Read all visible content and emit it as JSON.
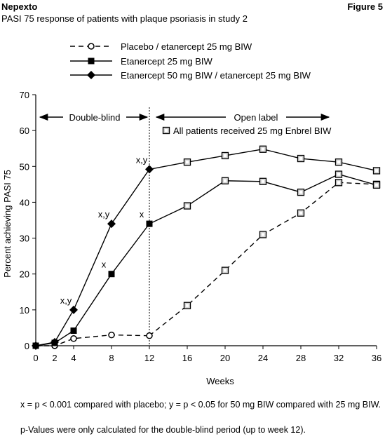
{
  "header": {
    "brand": "Nepexto",
    "figure_label": "Figure 5",
    "title": "PASI 75 response of patients with plaque psoriasis in study 2"
  },
  "chart_data": {
    "type": "line",
    "title": "PASI 75 response of patients with plaque psoriasis in study 2",
    "xlabel": "Weeks",
    "ylabel": "Percent achieving PASI 75",
    "xlim": [
      0,
      36
    ],
    "ylim": [
      0,
      70
    ],
    "x_ticks": [
      0,
      2,
      4,
      8,
      12,
      16,
      20,
      24,
      28,
      32,
      36
    ],
    "y_ticks": [
      0,
      10,
      20,
      30,
      40,
      50,
      60,
      70
    ],
    "grid": false,
    "legend_position": "top",
    "series": [
      {
        "name": "Placebo / etanercept 25 mg BIW",
        "style": "dashed",
        "marker": "open-circle",
        "x": [
          0,
          2,
          4,
          8,
          12
        ],
        "values": [
          0,
          0,
          2,
          3,
          2.8
        ],
        "color": "#000000"
      },
      {
        "name": "Etanercept 25 mg BIW",
        "style": "solid",
        "marker": "filled-square",
        "x": [
          0,
          2,
          4,
          8,
          12
        ],
        "values": [
          0,
          0.8,
          4.2,
          20,
          34
        ],
        "color": "#000000"
      },
      {
        "name": "Etanercept 50 mg BIW / etanercept 25 mg BIW",
        "style": "solid",
        "marker": "filled-diamond",
        "x": [
          0,
          2,
          4,
          8,
          12
        ],
        "values": [
          0,
          1,
          10,
          34,
          49.2
        ],
        "color": "#000000"
      },
      {
        "name": "All patients received 25 mg Enbrel BIW",
        "open_label": true,
        "from_series": 0,
        "style": "dashed",
        "marker": "open-square",
        "x": [
          12,
          16,
          20,
          24,
          28,
          32,
          36
        ],
        "values": [
          2.8,
          11.2,
          21,
          31,
          37,
          45.5,
          45
        ],
        "color": "#000000"
      },
      {
        "open_label": true,
        "from_series": 1,
        "style": "solid",
        "marker": "open-square",
        "x": [
          12,
          16,
          20,
          24,
          28,
          32,
          36
        ],
        "values": [
          34,
          39,
          46,
          45.8,
          42.8,
          47.8,
          44.8
        ],
        "color": "#000000"
      },
      {
        "open_label": true,
        "from_series": 2,
        "style": "solid",
        "marker": "open-square",
        "x": [
          12,
          16,
          20,
          24,
          28,
          32,
          36
        ],
        "values": [
          49.2,
          51.2,
          53,
          54.8,
          52.2,
          51.2,
          48.8
        ],
        "color": "#000000"
      }
    ],
    "annotations": [
      {
        "text": "x,y",
        "x": 4,
        "y": 10,
        "position": "upper-left"
      },
      {
        "text": "x",
        "x": 8,
        "y": 20,
        "position": "upper-left"
      },
      {
        "text": "x,y",
        "x": 8,
        "y": 34,
        "position": "upper-left"
      },
      {
        "text": "x",
        "x": 12,
        "y": 34,
        "position": "upper-left"
      },
      {
        "text": "x,y",
        "x": 12,
        "y": 49.2,
        "position": "upper-left"
      }
    ],
    "periods": [
      {
        "label": "Double-blind",
        "from": 0,
        "to": 12
      },
      {
        "label": "Open label",
        "from": 12,
        "to": 36
      }
    ],
    "divider_x": 12
  },
  "footnotes": [
    "x = p < 0.001 compared with placebo; y = p < 0.05 for 50 mg BIW compared with 25 mg BIW.",
    "p-Values were only calculated for the double-blind period (up to week 12)."
  ]
}
